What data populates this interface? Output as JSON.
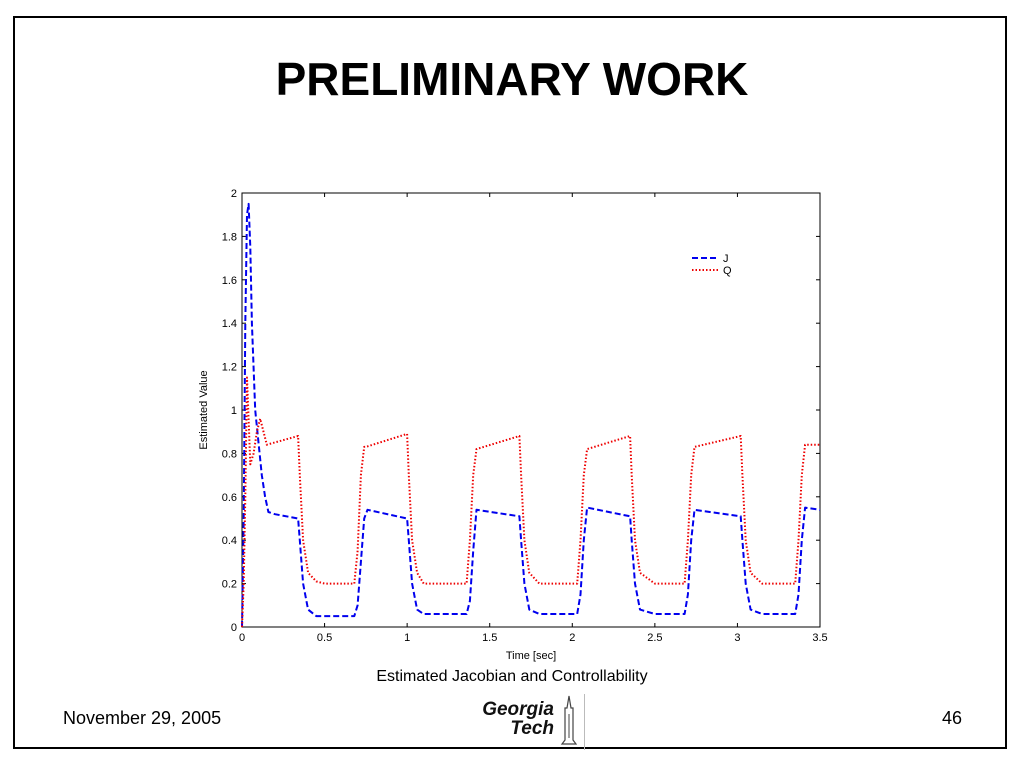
{
  "slide": {
    "title": "PRELIMINARY WORK",
    "caption": "Estimated Jacobian and Controllability",
    "date": "November 29, 2005",
    "page_number": "46",
    "logo_line1": "Georgia",
    "logo_line2": "Tech"
  },
  "chart_data": {
    "type": "line",
    "title": "",
    "xlabel": "Time [sec]",
    "ylabel": "Estimated Value",
    "xlim": [
      0,
      3.5
    ],
    "ylim": [
      0,
      2
    ],
    "xticks": [
      0,
      0.5,
      1,
      1.5,
      2,
      2.5,
      3,
      3.5
    ],
    "xtick_labels": [
      "0",
      "0.5",
      "1",
      "1.5",
      "2",
      "2.5",
      "3",
      "3.5"
    ],
    "yticks": [
      0,
      0.2,
      0.4,
      0.6,
      0.8,
      1,
      1.2,
      1.4,
      1.6,
      1.8,
      2
    ],
    "ytick_labels": [
      "0",
      "0.2",
      "0.4",
      "0.6",
      "0.8",
      "1",
      "1.2",
      "1.4",
      "1.6",
      "1.8",
      "2"
    ],
    "grid": false,
    "legend_position": "top-right",
    "series": [
      {
        "name": "J",
        "color": "#0000ee",
        "dash": "dashed",
        "x": [
          0,
          0.01,
          0.02,
          0.03,
          0.04,
          0.05,
          0.06,
          0.08,
          0.1,
          0.12,
          0.14,
          0.16,
          0.2,
          0.34,
          0.35,
          0.37,
          0.4,
          0.45,
          0.5,
          0.55,
          0.6,
          0.68,
          0.7,
          0.72,
          0.74,
          0.76,
          1.0,
          1.01,
          1.03,
          1.06,
          1.1,
          1.2,
          1.3,
          1.36,
          1.38,
          1.4,
          1.42,
          1.68,
          1.69,
          1.71,
          1.74,
          1.8,
          1.9,
          2.0,
          2.03,
          2.05,
          2.07,
          2.09,
          2.35,
          2.36,
          2.38,
          2.41,
          2.5,
          2.6,
          2.68,
          2.7,
          2.72,
          2.74,
          3.02,
          3.03,
          3.05,
          3.08,
          3.15,
          3.25,
          3.35,
          3.37,
          3.39,
          3.41,
          3.5
        ],
        "y": [
          0,
          0.5,
          1.4,
          1.9,
          1.95,
          1.75,
          1.4,
          1.0,
          0.85,
          0.7,
          0.6,
          0.53,
          0.52,
          0.5,
          0.4,
          0.2,
          0.08,
          0.05,
          0.05,
          0.05,
          0.05,
          0.05,
          0.1,
          0.3,
          0.5,
          0.54,
          0.5,
          0.4,
          0.2,
          0.08,
          0.06,
          0.06,
          0.06,
          0.06,
          0.12,
          0.35,
          0.54,
          0.51,
          0.4,
          0.2,
          0.08,
          0.06,
          0.06,
          0.06,
          0.06,
          0.15,
          0.4,
          0.55,
          0.51,
          0.4,
          0.2,
          0.08,
          0.06,
          0.06,
          0.06,
          0.15,
          0.4,
          0.54,
          0.51,
          0.4,
          0.2,
          0.08,
          0.06,
          0.06,
          0.06,
          0.15,
          0.4,
          0.55,
          0.54
        ]
      },
      {
        "name": "Q",
        "color": "#ee0000",
        "dash": "dotted",
        "x": [
          0,
          0.01,
          0.02,
          0.03,
          0.05,
          0.07,
          0.09,
          0.11,
          0.13,
          0.15,
          0.34,
          0.35,
          0.37,
          0.4,
          0.45,
          0.5,
          0.55,
          0.68,
          0.7,
          0.72,
          0.74,
          0.75,
          1.0,
          1.01,
          1.03,
          1.06,
          1.1,
          1.2,
          1.3,
          1.36,
          1.38,
          1.4,
          1.42,
          1.68,
          1.69,
          1.71,
          1.74,
          1.8,
          1.9,
          2.0,
          2.03,
          2.05,
          2.07,
          2.09,
          2.35,
          2.36,
          2.38,
          2.41,
          2.5,
          2.6,
          2.68,
          2.7,
          2.72,
          2.74,
          3.02,
          3.03,
          3.05,
          3.08,
          3.15,
          3.25,
          3.35,
          3.37,
          3.39,
          3.41,
          3.5
        ],
        "y": [
          0,
          0.2,
          0.6,
          1.15,
          0.75,
          0.8,
          0.9,
          0.96,
          0.9,
          0.84,
          0.88,
          0.7,
          0.4,
          0.25,
          0.21,
          0.2,
          0.2,
          0.2,
          0.35,
          0.7,
          0.83,
          0.83,
          0.89,
          0.7,
          0.4,
          0.25,
          0.2,
          0.2,
          0.2,
          0.2,
          0.4,
          0.7,
          0.82,
          0.88,
          0.7,
          0.4,
          0.25,
          0.2,
          0.2,
          0.2,
          0.2,
          0.4,
          0.7,
          0.82,
          0.88,
          0.7,
          0.4,
          0.25,
          0.2,
          0.2,
          0.2,
          0.4,
          0.7,
          0.83,
          0.88,
          0.7,
          0.4,
          0.25,
          0.2,
          0.2,
          0.2,
          0.4,
          0.7,
          0.84,
          0.84
        ]
      }
    ]
  }
}
